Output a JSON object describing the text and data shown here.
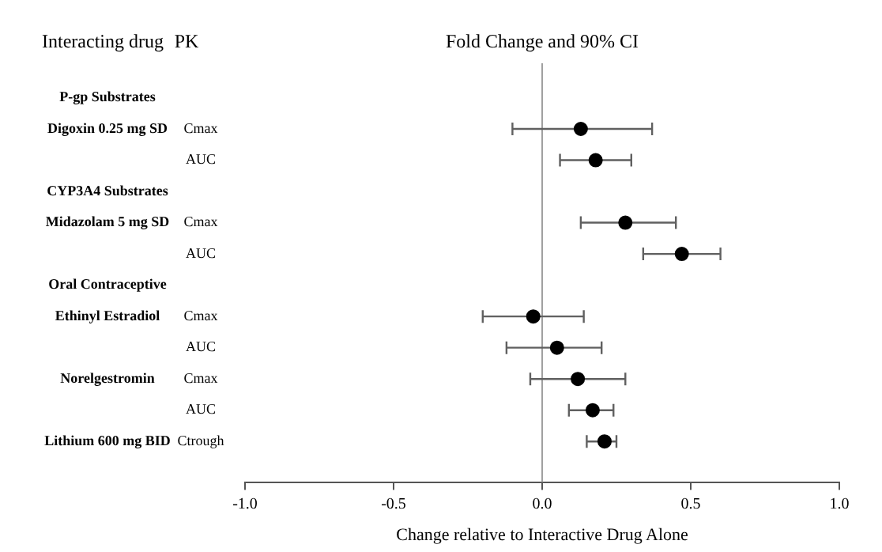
{
  "chart_data": {
    "type": "scatter",
    "orientation": "horizontal",
    "title": "Fold Change and 90% CI",
    "xlabel": "Change relative to Interactive Drug Alone",
    "categories": [
      "P-gp Substrates",
      "Digoxin 0.25 mg SD",
      null,
      "CYP3A4 Substrates",
      "Midazolam 5 mg SD",
      null,
      "Oral Contraceptive",
      "Ethinyl Estradiol",
      null,
      "Norelgestromin",
      null,
      "Lithium 600 mg BID"
    ],
    "y2_categories": [
      null,
      "Cmax",
      "AUC",
      null,
      "Cmax",
      "AUC",
      null,
      "Cmax",
      "AUC",
      "Cmax",
      "AUC",
      "Ctrough"
    ],
    "values": [
      null,
      0.13,
      0.18,
      null,
      0.28,
      0.47,
      null,
      -0.03,
      0.05,
      0.12,
      0.17,
      0.21
    ],
    "errors": [
      null,
      [
        -0.1,
        0.37
      ],
      [
        0.06,
        0.3
      ],
      null,
      [
        0.13,
        0.45
      ],
      [
        0.34,
        0.6
      ],
      null,
      [
        -0.2,
        0.14
      ],
      [
        -0.12,
        0.2
      ],
      [
        -0.04,
        0.28
      ],
      [
        0.09,
        0.24
      ],
      [
        0.15,
        0.25
      ]
    ],
    "color": "#000000",
    "marker": "circle",
    "xlim": [
      -1,
      1
    ],
    "xticks": [
      {
        "value": -1,
        "label": "-1.0"
      },
      {
        "value": -0.5,
        "label": "-0.5"
      },
      {
        "value": 0,
        "label": "0.0"
      },
      {
        "value": 0.5,
        "label": "0.5"
      },
      {
        "value": 1,
        "label": "1.0"
      }
    ],
    "ref_lines": [
      {
        "axis": "x",
        "value": 0,
        "color": "#a0a0a0"
      }
    ],
    "annotations": [
      "Interacting drug",
      "PK"
    ],
    "grid": false,
    "legend": false
  }
}
